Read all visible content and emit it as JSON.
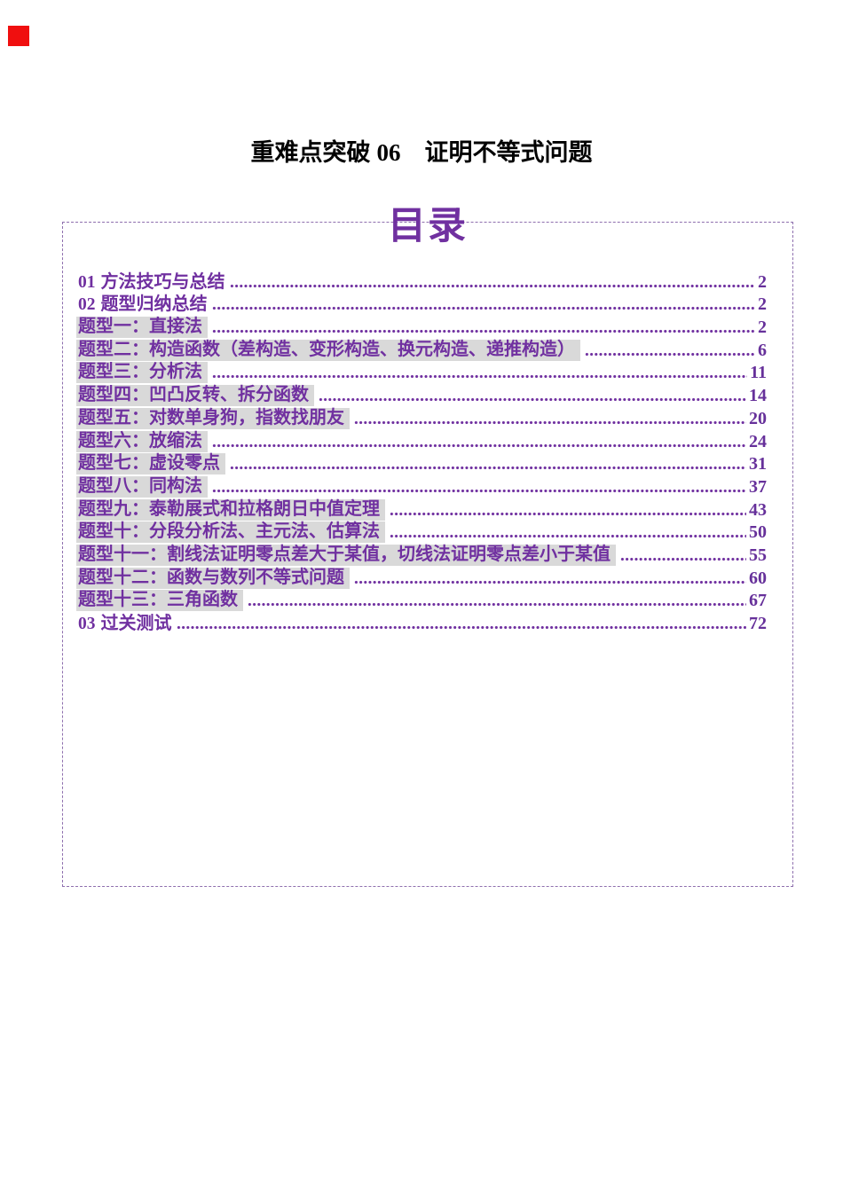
{
  "colors": {
    "accent": "#7030a0",
    "accent_num": "#66309a",
    "highlight": "#d9d9d9",
    "border": "#8e6fae",
    "redmark": "#f00f0f"
  },
  "title": {
    "series": "重难点突破",
    "number": "06",
    "subject": "证明不等式问题"
  },
  "toc": {
    "heading": "目录",
    "entries": [
      {
        "num": "01",
        "label": "方法技巧与总结",
        "page": "2",
        "highlight": false
      },
      {
        "num": "02",
        "label": "题型归纳总结",
        "page": "2",
        "highlight": false
      },
      {
        "num": "",
        "label": "题型一：直接法",
        "page": "2",
        "highlight": true
      },
      {
        "num": "",
        "label": "题型二：构造函数（差构造、变形构造、换元构造、递推构造）",
        "page": "6",
        "highlight": true
      },
      {
        "num": "",
        "label": "题型三：分析法",
        "page": "11",
        "highlight": true
      },
      {
        "num": "",
        "label": "题型四：凹凸反转、拆分函数",
        "page": "14",
        "highlight": true
      },
      {
        "num": "",
        "label": "题型五：对数单身狗，指数找朋友",
        "page": "20",
        "highlight": true
      },
      {
        "num": "",
        "label": "题型六：放缩法",
        "page": "24",
        "highlight": true
      },
      {
        "num": "",
        "label": "题型七：虚设零点",
        "page": "31",
        "highlight": true
      },
      {
        "num": "",
        "label": "题型八：同构法",
        "page": "37",
        "highlight": true
      },
      {
        "num": "",
        "label": "题型九：泰勒展式和拉格朗日中值定理",
        "page": "43",
        "highlight": true
      },
      {
        "num": "",
        "label": "题型十：分段分析法、主元法、估算法",
        "page": "50",
        "highlight": true
      },
      {
        "num": "",
        "label": "题型十一：割线法证明零点差大于某值，切线法证明零点差小于某值",
        "page": "55",
        "highlight": true
      },
      {
        "num": "",
        "label": "题型十二：函数与数列不等式问题",
        "page": "60",
        "highlight": true
      },
      {
        "num": "",
        "label": "题型十三：三角函数",
        "page": "67",
        "highlight": true
      },
      {
        "num": "03",
        "label": "过关测试",
        "page": "72",
        "highlight": false
      }
    ]
  }
}
